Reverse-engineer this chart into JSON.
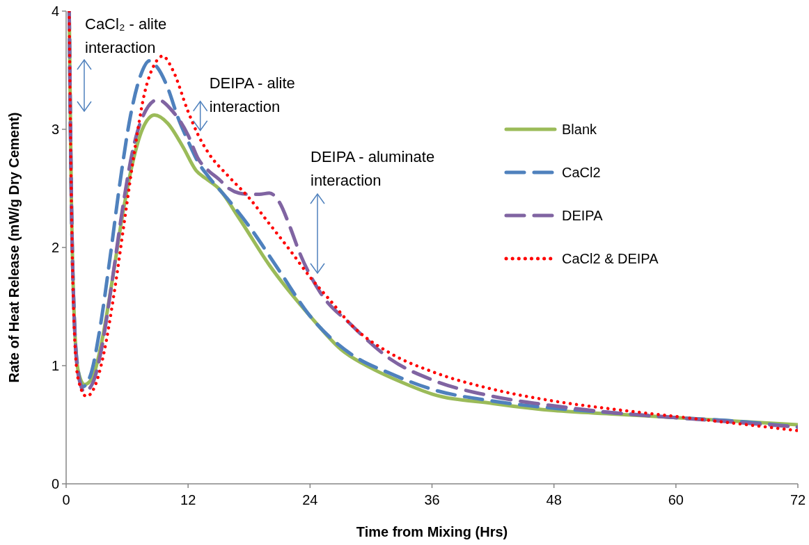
{
  "chart_data": {
    "type": "line",
    "xlabel": "Time from Mixing (Hrs)",
    "ylabel": "Rate of Heat Release (mW/g Dry Cement)",
    "xlim": [
      0,
      72
    ],
    "xticks": [
      0,
      12,
      24,
      36,
      48,
      60,
      72
    ],
    "ylim": [
      0,
      4
    ],
    "yticks": [
      0,
      1,
      2,
      3,
      4
    ],
    "grid": false,
    "legend": "right",
    "annotations": [
      "CaCl₂ - alite interaction",
      {
        "text": "DEIPA - alite interaction",
        "x": 13.2,
        "y": 2.99
      },
      "DEIPA - aluminate interaction"
    ],
    "series": [
      {
        "name": "Blank",
        "color": "#9bbb59",
        "line_style": "solid",
        "x": [
          0.3,
          0.5,
          0.8,
          1.2,
          1.8,
          2.6,
          3.5,
          4.5,
          5.5,
          6.5,
          7.5,
          8.7,
          10,
          11.5,
          12.8,
          13.8,
          15,
          17,
          20,
          24,
          27,
          30,
          33,
          36,
          42,
          48,
          54,
          60,
          66,
          72
        ],
        "values": [
          4.0,
          2.5,
          1.4,
          0.95,
          0.84,
          0.9,
          1.2,
          1.7,
          2.25,
          2.7,
          3.0,
          3.12,
          3.05,
          2.85,
          2.65,
          2.58,
          2.5,
          2.25,
          1.85,
          1.42,
          1.14,
          0.98,
          0.86,
          0.76,
          0.68,
          0.62,
          0.59,
          0.56,
          0.53,
          0.5
        ]
      },
      {
        "name": "CaCl2",
        "color": "#4f81bd",
        "line_style": "dashed",
        "x": [
          0.3,
          0.5,
          0.8,
          1.2,
          1.6,
          2.4,
          3.3,
          4.3,
          5.3,
          6.3,
          7.3,
          8.2,
          9,
          10,
          11,
          12,
          13,
          14,
          16,
          18,
          21,
          24,
          28,
          32,
          36,
          42,
          48,
          54,
          60,
          66,
          72
        ],
        "values": [
          4.0,
          2.5,
          1.4,
          0.95,
          0.82,
          0.92,
          1.3,
          1.9,
          2.55,
          3.1,
          3.45,
          3.58,
          3.52,
          3.35,
          3.1,
          2.9,
          2.72,
          2.6,
          2.4,
          2.18,
          1.8,
          1.42,
          1.1,
          0.93,
          0.8,
          0.7,
          0.64,
          0.6,
          0.56,
          0.53,
          0.48
        ]
      },
      {
        "name": "DEIPA",
        "color": "#8064a2",
        "line_style": "dashed",
        "x": [
          0.3,
          0.5,
          0.8,
          1.2,
          1.8,
          2.6,
          3.5,
          4.5,
          5.5,
          6.5,
          7.5,
          9,
          10.5,
          12,
          13,
          14,
          15,
          16,
          17,
          18,
          19,
          20,
          21,
          22,
          23,
          25,
          28,
          32,
          36,
          42,
          48,
          54,
          60,
          66,
          72
        ],
        "values": [
          4.0,
          2.5,
          1.4,
          0.92,
          0.78,
          0.85,
          1.15,
          1.7,
          2.3,
          2.8,
          3.1,
          3.25,
          3.15,
          2.95,
          2.75,
          2.65,
          2.58,
          2.5,
          2.46,
          2.45,
          2.45,
          2.46,
          2.38,
          2.18,
          1.95,
          1.62,
          1.35,
          1.05,
          0.88,
          0.74,
          0.66,
          0.6,
          0.56,
          0.52,
          0.48
        ]
      },
      {
        "name": "CaCl2 & DEIPA",
        "color": "#ff0000",
        "line_style": "dotted",
        "x": [
          0.3,
          0.5,
          0.8,
          1.2,
          2.0,
          2.8,
          3.7,
          4.7,
          5.7,
          6.7,
          7.7,
          8.7,
          9.5,
          10.5,
          12,
          13,
          14,
          16,
          18,
          20,
          22,
          24,
          26,
          28,
          32,
          36,
          42,
          48,
          54,
          60,
          66,
          72
        ],
        "values": [
          4.0,
          2.5,
          1.3,
          0.88,
          0.74,
          0.82,
          1.1,
          1.6,
          2.2,
          2.8,
          3.3,
          3.55,
          3.62,
          3.5,
          3.15,
          2.95,
          2.8,
          2.6,
          2.42,
          2.2,
          1.98,
          1.75,
          1.55,
          1.35,
          1.1,
          0.95,
          0.8,
          0.7,
          0.63,
          0.57,
          0.51,
          0.45
        ]
      }
    ]
  }
}
